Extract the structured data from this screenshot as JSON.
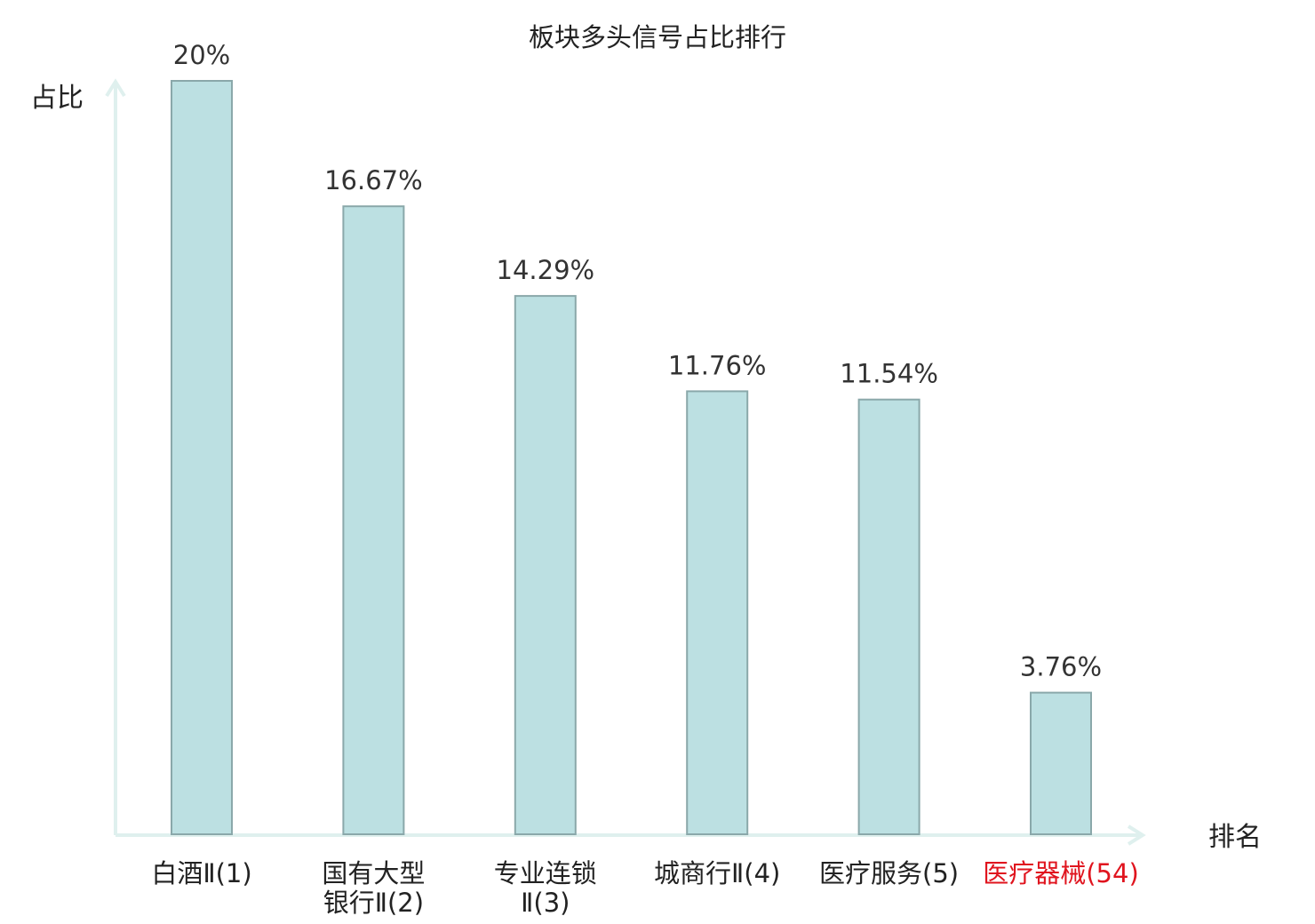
{
  "chart_data": {
    "type": "bar",
    "title": "板块多头信号占比排行",
    "xlabel": "排名",
    "ylabel": "占比",
    "ylim": [
      0,
      20
    ],
    "grid": false,
    "categories": [
      [
        "白酒Ⅱ(1)"
      ],
      [
        "国有大型",
        "银行Ⅱ(2)"
      ],
      [
        "专业连锁",
        "Ⅱ(3)"
      ],
      [
        "城商行Ⅱ(4)"
      ],
      [
        "医疗服务(5)"
      ],
      [
        "医疗器械(54)"
      ]
    ],
    "values": [
      20,
      16.67,
      14.29,
      11.76,
      11.54,
      3.76
    ],
    "value_labels": [
      "20%",
      "16.67%",
      "14.29%",
      "11.76%",
      "11.54%",
      "3.76%"
    ],
    "highlight_index": 5,
    "colors": {
      "bar_fill": "#bce0e2",
      "bar_stroke": "#8aa8aa",
      "axis": "#dff0ee",
      "highlight_text": "#e0141e",
      "text": "#222222"
    }
  }
}
